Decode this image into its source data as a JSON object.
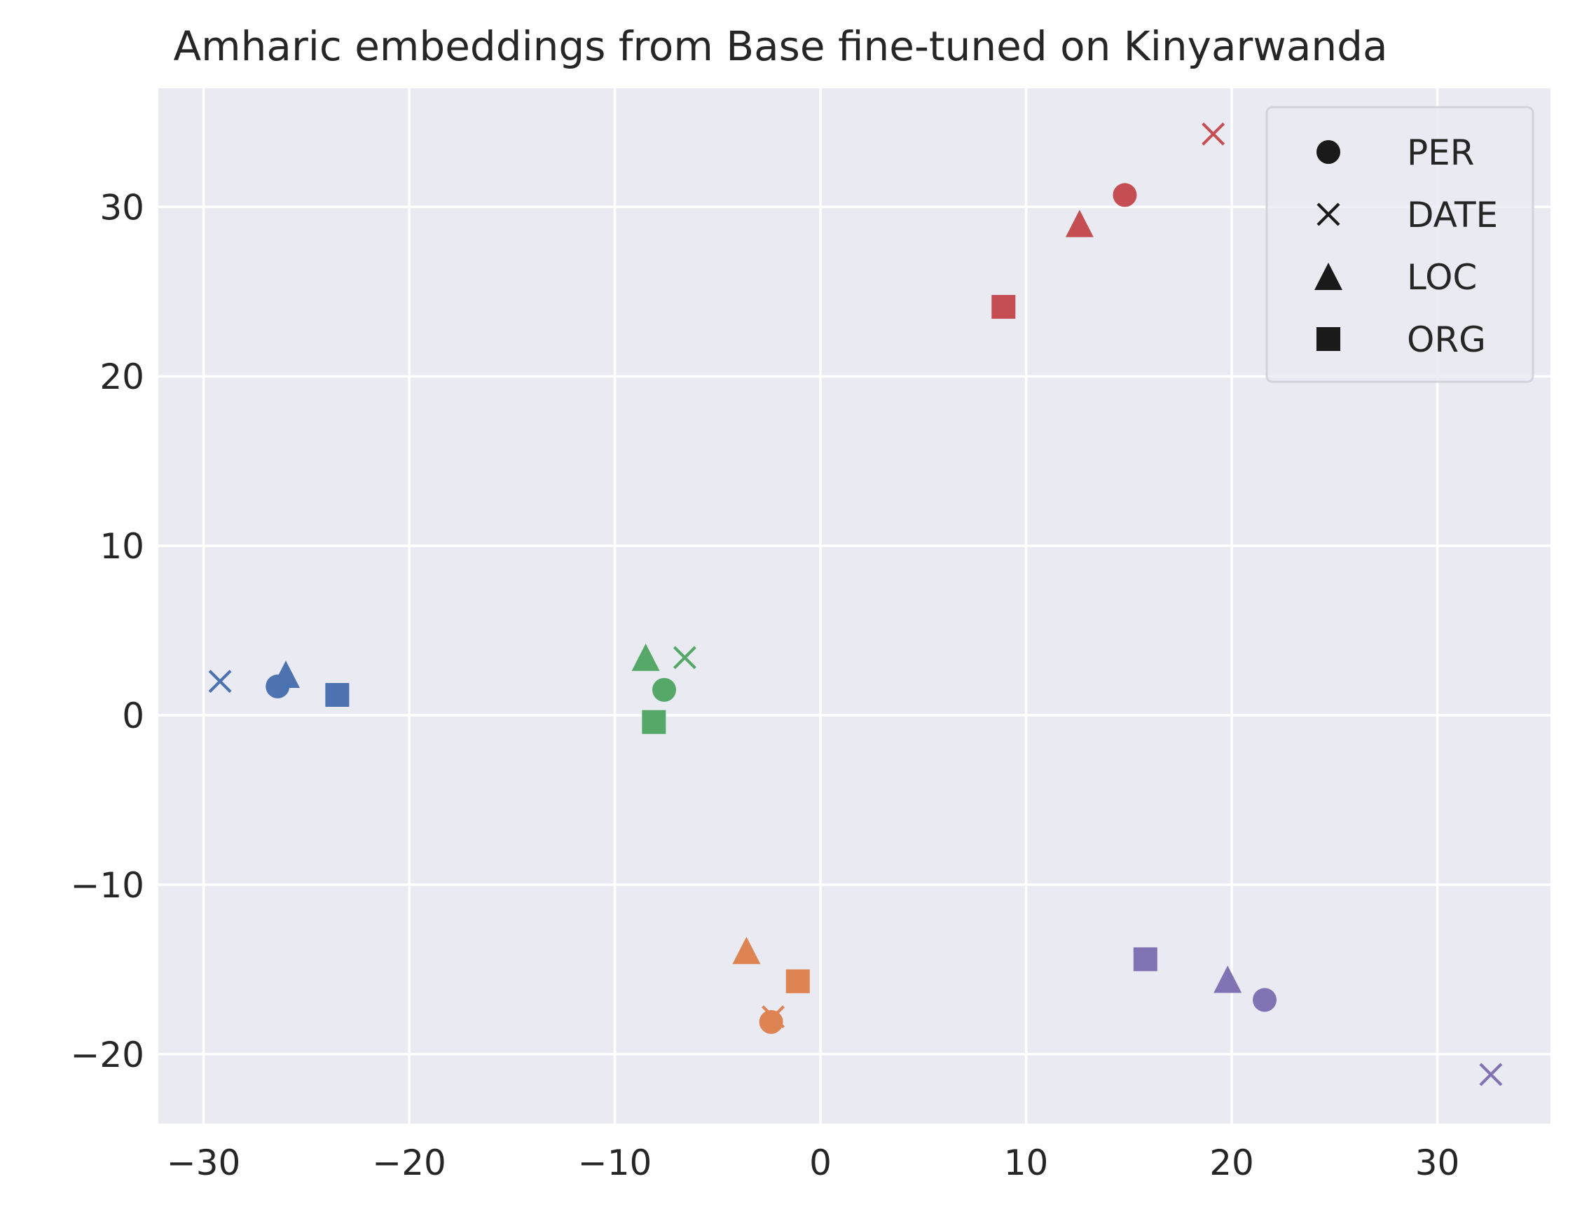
{
  "chart_data": {
    "type": "scatter",
    "title": "Amharic embeddings from Base fine-tuned on Kinyarwanda",
    "xlabel": "",
    "ylabel": "",
    "xlim": [
      -32.2,
      35.5
    ],
    "ylim": [
      -24.1,
      37.0
    ],
    "grid": true,
    "x_ticks": [
      -30,
      -20,
      -10,
      0,
      10,
      20,
      30
    ],
    "y_ticks": [
      -20,
      -10,
      0,
      10,
      20,
      30
    ],
    "x_tick_labels": [
      "−30",
      "−20",
      "−10",
      "0",
      "10",
      "20",
      "30"
    ],
    "y_tick_labels": [
      "−20",
      "−10",
      "0",
      "10",
      "20",
      "30"
    ],
    "legend": {
      "placement": "top-right",
      "entries": [
        {
          "label": "PER",
          "marker": "circle"
        },
        {
          "label": "DATE",
          "marker": "x"
        },
        {
          "label": "LOC",
          "marker": "triangle"
        },
        {
          "label": "ORG",
          "marker": "square"
        }
      ]
    },
    "series": [
      {
        "name": "group-blue",
        "color": "#4c72b0",
        "points": [
          {
            "label": "PER",
            "marker": "circle",
            "x": -26.4,
            "y": 1.7
          },
          {
            "label": "DATE",
            "marker": "x",
            "x": -29.2,
            "y": 2.0
          },
          {
            "label": "LOC",
            "marker": "triangle",
            "x": -26.0,
            "y": 2.4
          },
          {
            "label": "ORG",
            "marker": "square",
            "x": -23.5,
            "y": 1.2
          }
        ]
      },
      {
        "name": "group-green",
        "color": "#55a868",
        "points": [
          {
            "label": "PER",
            "marker": "circle",
            "x": -7.6,
            "y": 1.5
          },
          {
            "label": "DATE",
            "marker": "x",
            "x": -6.6,
            "y": 3.4
          },
          {
            "label": "LOC",
            "marker": "triangle",
            "x": -8.5,
            "y": 3.4
          },
          {
            "label": "ORG",
            "marker": "square",
            "x": -8.1,
            "y": -0.4
          }
        ]
      },
      {
        "name": "group-orange",
        "color": "#dd8452",
        "points": [
          {
            "label": "PER",
            "marker": "circle",
            "x": -2.4,
            "y": -18.1
          },
          {
            "label": "DATE",
            "marker": "x",
            "x": -2.3,
            "y": -17.8
          },
          {
            "label": "LOC",
            "marker": "triangle",
            "x": -3.6,
            "y": -13.9
          },
          {
            "label": "ORG",
            "marker": "square",
            "x": -1.1,
            "y": -15.7
          }
        ]
      },
      {
        "name": "group-red",
        "color": "#c44e52",
        "points": [
          {
            "label": "PER",
            "marker": "circle",
            "x": 14.8,
            "y": 30.7
          },
          {
            "label": "DATE",
            "marker": "x",
            "x": 19.1,
            "y": 34.3
          },
          {
            "label": "LOC",
            "marker": "triangle",
            "x": 12.6,
            "y": 29.0
          },
          {
            "label": "ORG",
            "marker": "square",
            "x": 8.9,
            "y": 24.1
          }
        ]
      },
      {
        "name": "group-purple",
        "color": "#8172b3",
        "points": [
          {
            "label": "PER",
            "marker": "circle",
            "x": 21.6,
            "y": -16.8
          },
          {
            "label": "DATE",
            "marker": "x",
            "x": 32.6,
            "y": -21.2
          },
          {
            "label": "LOC",
            "marker": "triangle",
            "x": 19.8,
            "y": -15.6
          },
          {
            "label": "ORG",
            "marker": "square",
            "x": 15.8,
            "y": -14.4
          }
        ]
      }
    ]
  },
  "style": {
    "plot_background": "#eaeaf2",
    "grid_color": "#ffffff",
    "text_color": "#262626",
    "legend_marker_color": "#1a1a1a"
  }
}
